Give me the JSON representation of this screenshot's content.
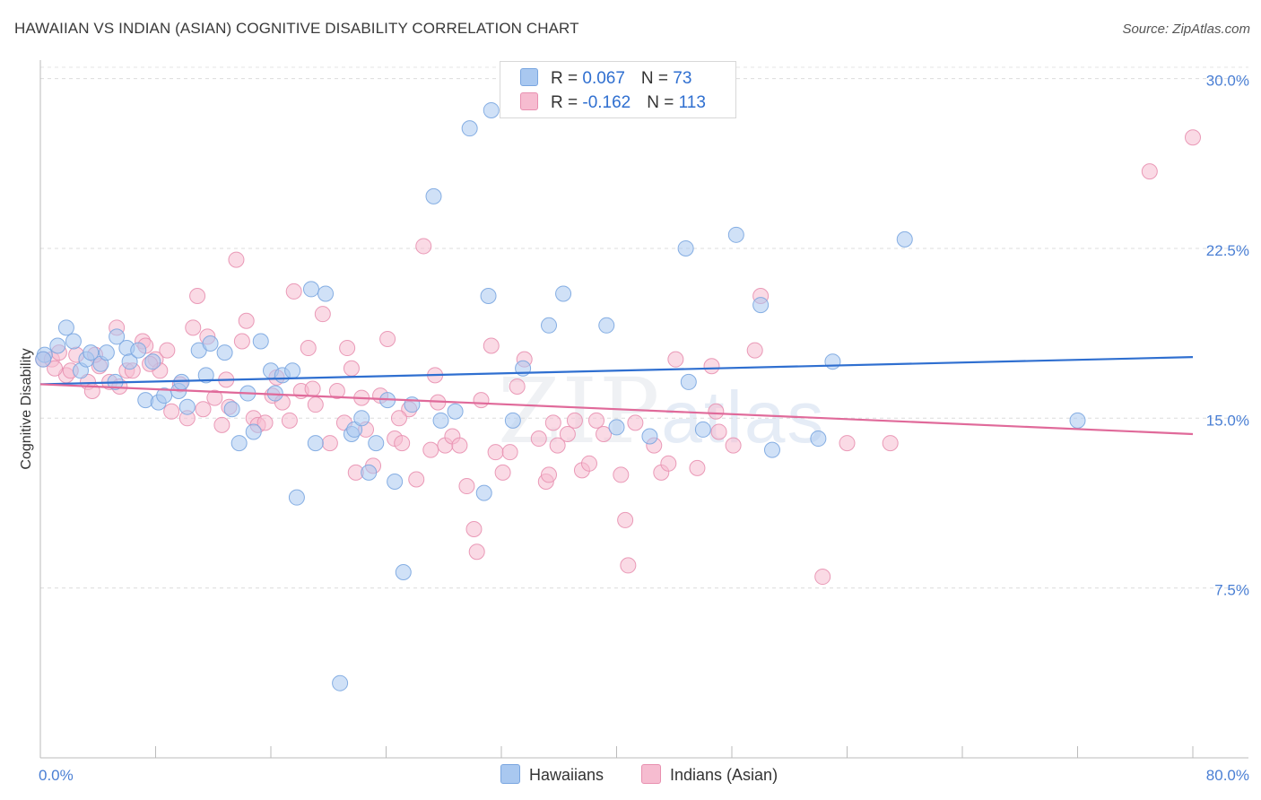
{
  "title": "HAWAIIAN VS INDIAN (ASIAN) COGNITIVE DISABILITY CORRELATION CHART",
  "source": "Source: ZipAtlas.com",
  "watermark": {
    "zip": "ZIP",
    "atlas": "atlas"
  },
  "legend": {
    "rows": [
      {
        "r_label": "R = ",
        "r_value": "0.067",
        "n_label": "N = ",
        "n_value": "73",
        "color": "#a9c8f0",
        "border": "#7aa6e0"
      },
      {
        "r_label": "R = ",
        "r_value": "-0.162",
        "n_label": "N = ",
        "n_value": "113",
        "color": "#f6bcd0",
        "border": "#e890b0"
      }
    ]
  },
  "chart_data": {
    "type": "scatter",
    "title": "HAWAIIAN VS INDIAN (ASIAN) COGNITIVE DISABILITY CORRELATION CHART",
    "xlabel": "",
    "ylabel": "Cognitive Disability",
    "xlim": [
      0,
      80
    ],
    "ylim": [
      0,
      30.5
    ],
    "x_tick_labels": [
      "0.0%",
      "80.0%"
    ],
    "y_ticks": [
      7.5,
      15.0,
      22.5,
      30.0
    ],
    "y_tick_labels": [
      "7.5%",
      "15.0%",
      "22.5%",
      "30.0%"
    ],
    "grid": true,
    "legend_position": "top-center",
    "series": [
      {
        "name": "Hawaiians",
        "color": "#a9c8f0",
        "stroke": "#7aa6e0",
        "trend": {
          "color": "#2f6fd0",
          "x": [
            0,
            80
          ],
          "y": [
            16.5,
            17.7
          ]
        },
        "points": [
          [
            0.3,
            17.8
          ],
          [
            1.2,
            18.2
          ],
          [
            1.8,
            19.0
          ],
          [
            2.3,
            18.4
          ],
          [
            2.8,
            17.1
          ],
          [
            3.2,
            17.6
          ],
          [
            3.5,
            17.9
          ],
          [
            4.2,
            17.4
          ],
          [
            4.6,
            17.9
          ],
          [
            5.2,
            16.6
          ],
          [
            5.3,
            18.6
          ],
          [
            6.0,
            18.1
          ],
          [
            6.2,
            17.5
          ],
          [
            6.8,
            18.0
          ],
          [
            7.3,
            15.8
          ],
          [
            7.8,
            17.5
          ],
          [
            8.2,
            15.7
          ],
          [
            8.6,
            16.0
          ],
          [
            9.6,
            16.2
          ],
          [
            9.8,
            16.6
          ],
          [
            10.2,
            15.5
          ],
          [
            11.0,
            18.0
          ],
          [
            11.5,
            16.9
          ],
          [
            11.8,
            18.3
          ],
          [
            12.8,
            17.9
          ],
          [
            13.3,
            15.4
          ],
          [
            13.8,
            13.9
          ],
          [
            14.4,
            16.1
          ],
          [
            14.8,
            14.4
          ],
          [
            15.3,
            18.4
          ],
          [
            16.0,
            17.1
          ],
          [
            16.3,
            16.1
          ],
          [
            16.8,
            16.9
          ],
          [
            17.5,
            17.1
          ],
          [
            17.8,
            11.5
          ],
          [
            18.8,
            20.7
          ],
          [
            19.1,
            13.9
          ],
          [
            19.8,
            20.5
          ],
          [
            20.8,
            3.3
          ],
          [
            21.6,
            14.3
          ],
          [
            21.8,
            14.5
          ],
          [
            22.3,
            15.0
          ],
          [
            22.8,
            12.6
          ],
          [
            23.3,
            13.9
          ],
          [
            24.1,
            15.8
          ],
          [
            24.6,
            12.2
          ],
          [
            25.2,
            8.2
          ],
          [
            25.8,
            15.6
          ],
          [
            27.3,
            24.8
          ],
          [
            27.8,
            14.9
          ],
          [
            28.8,
            15.3
          ],
          [
            29.8,
            27.8
          ],
          [
            30.8,
            11.7
          ],
          [
            31.1,
            20.4
          ],
          [
            31.3,
            28.6
          ],
          [
            32.8,
            14.9
          ],
          [
            33.5,
            17.2
          ],
          [
            35.3,
            19.1
          ],
          [
            36.3,
            20.5
          ],
          [
            39.3,
            19.1
          ],
          [
            40.0,
            14.6
          ],
          [
            42.3,
            14.2
          ],
          [
            44.8,
            22.5
          ],
          [
            45.0,
            16.6
          ],
          [
            46.0,
            14.5
          ],
          [
            48.3,
            23.1
          ],
          [
            50.0,
            20.0
          ],
          [
            50.8,
            13.6
          ],
          [
            54.0,
            14.1
          ],
          [
            55.0,
            17.5
          ],
          [
            60.0,
            22.9
          ],
          [
            72.0,
            14.9
          ],
          [
            0.2,
            17.6
          ]
        ]
      },
      {
        "name": "Indians (Asian)",
        "color": "#f6bcd0",
        "stroke": "#e890b0",
        "trend": {
          "color": "#e06a9a",
          "x": [
            0,
            80
          ],
          "y": [
            16.5,
            14.3
          ]
        },
        "points": [
          [
            0.2,
            17.6
          ],
          [
            0.8,
            17.6
          ],
          [
            1.3,
            17.9
          ],
          [
            1.8,
            16.9
          ],
          [
            2.1,
            17.1
          ],
          [
            2.5,
            17.8
          ],
          [
            3.3,
            16.6
          ],
          [
            3.6,
            16.2
          ],
          [
            4.1,
            17.3
          ],
          [
            4.8,
            16.6
          ],
          [
            5.3,
            19.0
          ],
          [
            5.5,
            16.4
          ],
          [
            6.0,
            17.1
          ],
          [
            6.4,
            17.1
          ],
          [
            7.1,
            18.4
          ],
          [
            7.3,
            18.2
          ],
          [
            8.0,
            17.6
          ],
          [
            8.3,
            17.1
          ],
          [
            8.8,
            18.0
          ],
          [
            9.1,
            15.3
          ],
          [
            9.7,
            16.5
          ],
          [
            10.2,
            15.0
          ],
          [
            10.6,
            19.0
          ],
          [
            10.9,
            20.4
          ],
          [
            11.3,
            15.4
          ],
          [
            11.6,
            18.6
          ],
          [
            12.1,
            15.9
          ],
          [
            12.6,
            14.7
          ],
          [
            13.1,
            15.5
          ],
          [
            13.6,
            22.0
          ],
          [
            14.0,
            18.4
          ],
          [
            14.3,
            19.3
          ],
          [
            14.8,
            15.0
          ],
          [
            15.1,
            14.7
          ],
          [
            15.6,
            14.8
          ],
          [
            16.1,
            16.0
          ],
          [
            16.4,
            16.8
          ],
          [
            16.8,
            15.7
          ],
          [
            17.3,
            14.9
          ],
          [
            17.6,
            20.6
          ],
          [
            18.1,
            16.2
          ],
          [
            18.6,
            18.1
          ],
          [
            19.1,
            15.6
          ],
          [
            19.6,
            19.6
          ],
          [
            20.1,
            13.9
          ],
          [
            20.6,
            16.2
          ],
          [
            21.1,
            14.8
          ],
          [
            21.3,
            18.1
          ],
          [
            21.6,
            17.2
          ],
          [
            21.9,
            12.6
          ],
          [
            22.3,
            15.9
          ],
          [
            22.6,
            14.5
          ],
          [
            23.1,
            12.9
          ],
          [
            23.6,
            16.0
          ],
          [
            24.1,
            18.5
          ],
          [
            24.6,
            14.1
          ],
          [
            25.1,
            13.9
          ],
          [
            25.6,
            15.4
          ],
          [
            26.1,
            12.3
          ],
          [
            26.6,
            22.6
          ],
          [
            27.1,
            13.6
          ],
          [
            27.6,
            15.7
          ],
          [
            28.1,
            13.8
          ],
          [
            28.6,
            14.2
          ],
          [
            29.1,
            13.8
          ],
          [
            29.6,
            12.0
          ],
          [
            30.1,
            10.1
          ],
          [
            30.3,
            9.1
          ],
          [
            30.6,
            15.8
          ],
          [
            31.3,
            18.2
          ],
          [
            31.6,
            13.5
          ],
          [
            32.1,
            12.6
          ],
          [
            32.6,
            13.5
          ],
          [
            33.1,
            16.4
          ],
          [
            33.6,
            17.6
          ],
          [
            34.6,
            14.1
          ],
          [
            35.1,
            12.2
          ],
          [
            35.3,
            12.5
          ],
          [
            35.6,
            14.8
          ],
          [
            35.9,
            13.8
          ],
          [
            36.6,
            14.3
          ],
          [
            37.1,
            14.9
          ],
          [
            37.6,
            12.7
          ],
          [
            38.1,
            13.0
          ],
          [
            38.6,
            14.9
          ],
          [
            39.1,
            14.3
          ],
          [
            40.3,
            12.5
          ],
          [
            40.6,
            10.5
          ],
          [
            40.8,
            8.5
          ],
          [
            41.3,
            14.8
          ],
          [
            42.6,
            13.8
          ],
          [
            43.1,
            12.6
          ],
          [
            43.6,
            13.0
          ],
          [
            44.1,
            17.6
          ],
          [
            45.6,
            12.8
          ],
          [
            46.6,
            17.3
          ],
          [
            46.9,
            15.3
          ],
          [
            47.1,
            14.4
          ],
          [
            48.1,
            13.8
          ],
          [
            49.6,
            18.0
          ],
          [
            50.0,
            20.4
          ],
          [
            54.3,
            8.0
          ],
          [
            56.0,
            13.9
          ],
          [
            59.0,
            13.9
          ],
          [
            77.0,
            25.9
          ],
          [
            80.0,
            27.4
          ],
          [
            1.0,
            17.2
          ],
          [
            3.8,
            17.8
          ],
          [
            7.6,
            17.4
          ],
          [
            12.9,
            16.7
          ],
          [
            18.9,
            16.3
          ],
          [
            24.9,
            15.0
          ],
          [
            27.4,
            16.9
          ]
        ]
      }
    ]
  }
}
